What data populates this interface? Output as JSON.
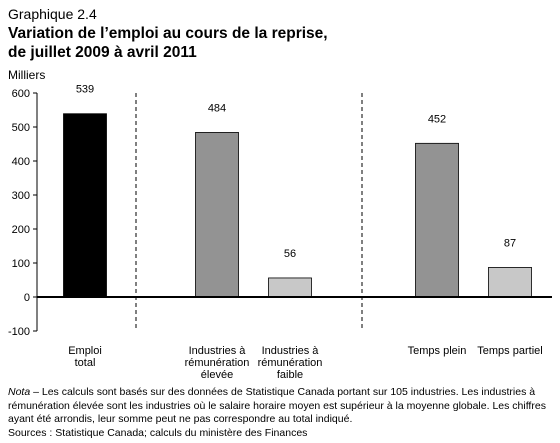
{
  "header": {
    "kicker": "Graphique 2.4",
    "title": "Variation de l’emploi au cours de la reprise,\nde juillet 2009 à avril 2011",
    "unit": "Milliers"
  },
  "chart_data": {
    "type": "bar",
    "categories": [
      [
        "Emploi",
        "total"
      ],
      [
        "Industries à",
        "rémunération",
        "élevée"
      ],
      [
        "Industries à",
        "rémunération",
        "faible"
      ],
      [
        "Temps plein"
      ],
      [
        "Temps partiel"
      ]
    ],
    "values": [
      539,
      484,
      56,
      452,
      87
    ],
    "data_labels": [
      "539",
      "484",
      "56",
      "452",
      "87"
    ],
    "bar_colors": [
      "#000000",
      "#939393",
      "#c8c8c8",
      "#939393",
      "#c8c8c8"
    ],
    "ylim": [
      -100,
      600
    ],
    "yticks": [
      -100,
      0,
      100,
      200,
      300,
      400,
      500,
      600
    ],
    "ylabel": "Milliers",
    "xlabel": "",
    "grid": false,
    "group_separators": "dashed vertical lines between groups"
  },
  "notes": {
    "note_label": "Nota",
    "note_text": " – Les calculs sont basés sur des données de Statistique Canada portant sur 105 industries. Les industries à rémunération élevée sont les industries où le salaire horaire moyen est supérieur à la moyenne globale. Les chiffres ayant été arrondis, leur somme peut ne pas correspondre au total indiqué.",
    "sources": "Sources : Statistique Canada; calculs du ministère des Finances"
  }
}
